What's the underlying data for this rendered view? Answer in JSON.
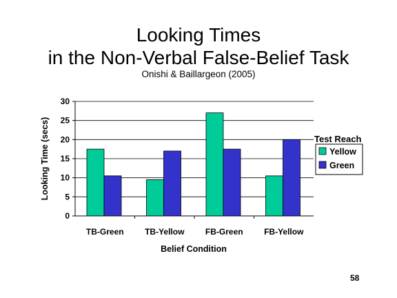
{
  "slide": {
    "title_line1": "Looking Times",
    "title_line2": "in the Non-Verbal False-Belief Task",
    "subtitle": "Onishi & Baillargeon (2005)",
    "page_number": "58"
  },
  "chart_data": {
    "type": "bar",
    "title": "",
    "xlabel": "Belief Condition",
    "ylabel": "Looking Time (secs)",
    "ylim": [
      0,
      30
    ],
    "yticks": [
      0,
      5,
      10,
      15,
      20,
      25,
      30
    ],
    "grid": true,
    "categories": [
      "TB-Green",
      "TB-Yellow",
      "FB-Green",
      "FB-Yellow"
    ],
    "legend": {
      "title": "Test Reach",
      "position": "right"
    },
    "series": [
      {
        "name": "Yellow",
        "values": [
          17.5,
          9.5,
          27,
          10.5
        ],
        "color": "#00cc99"
      },
      {
        "name": "Green",
        "values": [
          10.5,
          17,
          17.5,
          20
        ],
        "color": "#3333cc"
      }
    ]
  }
}
